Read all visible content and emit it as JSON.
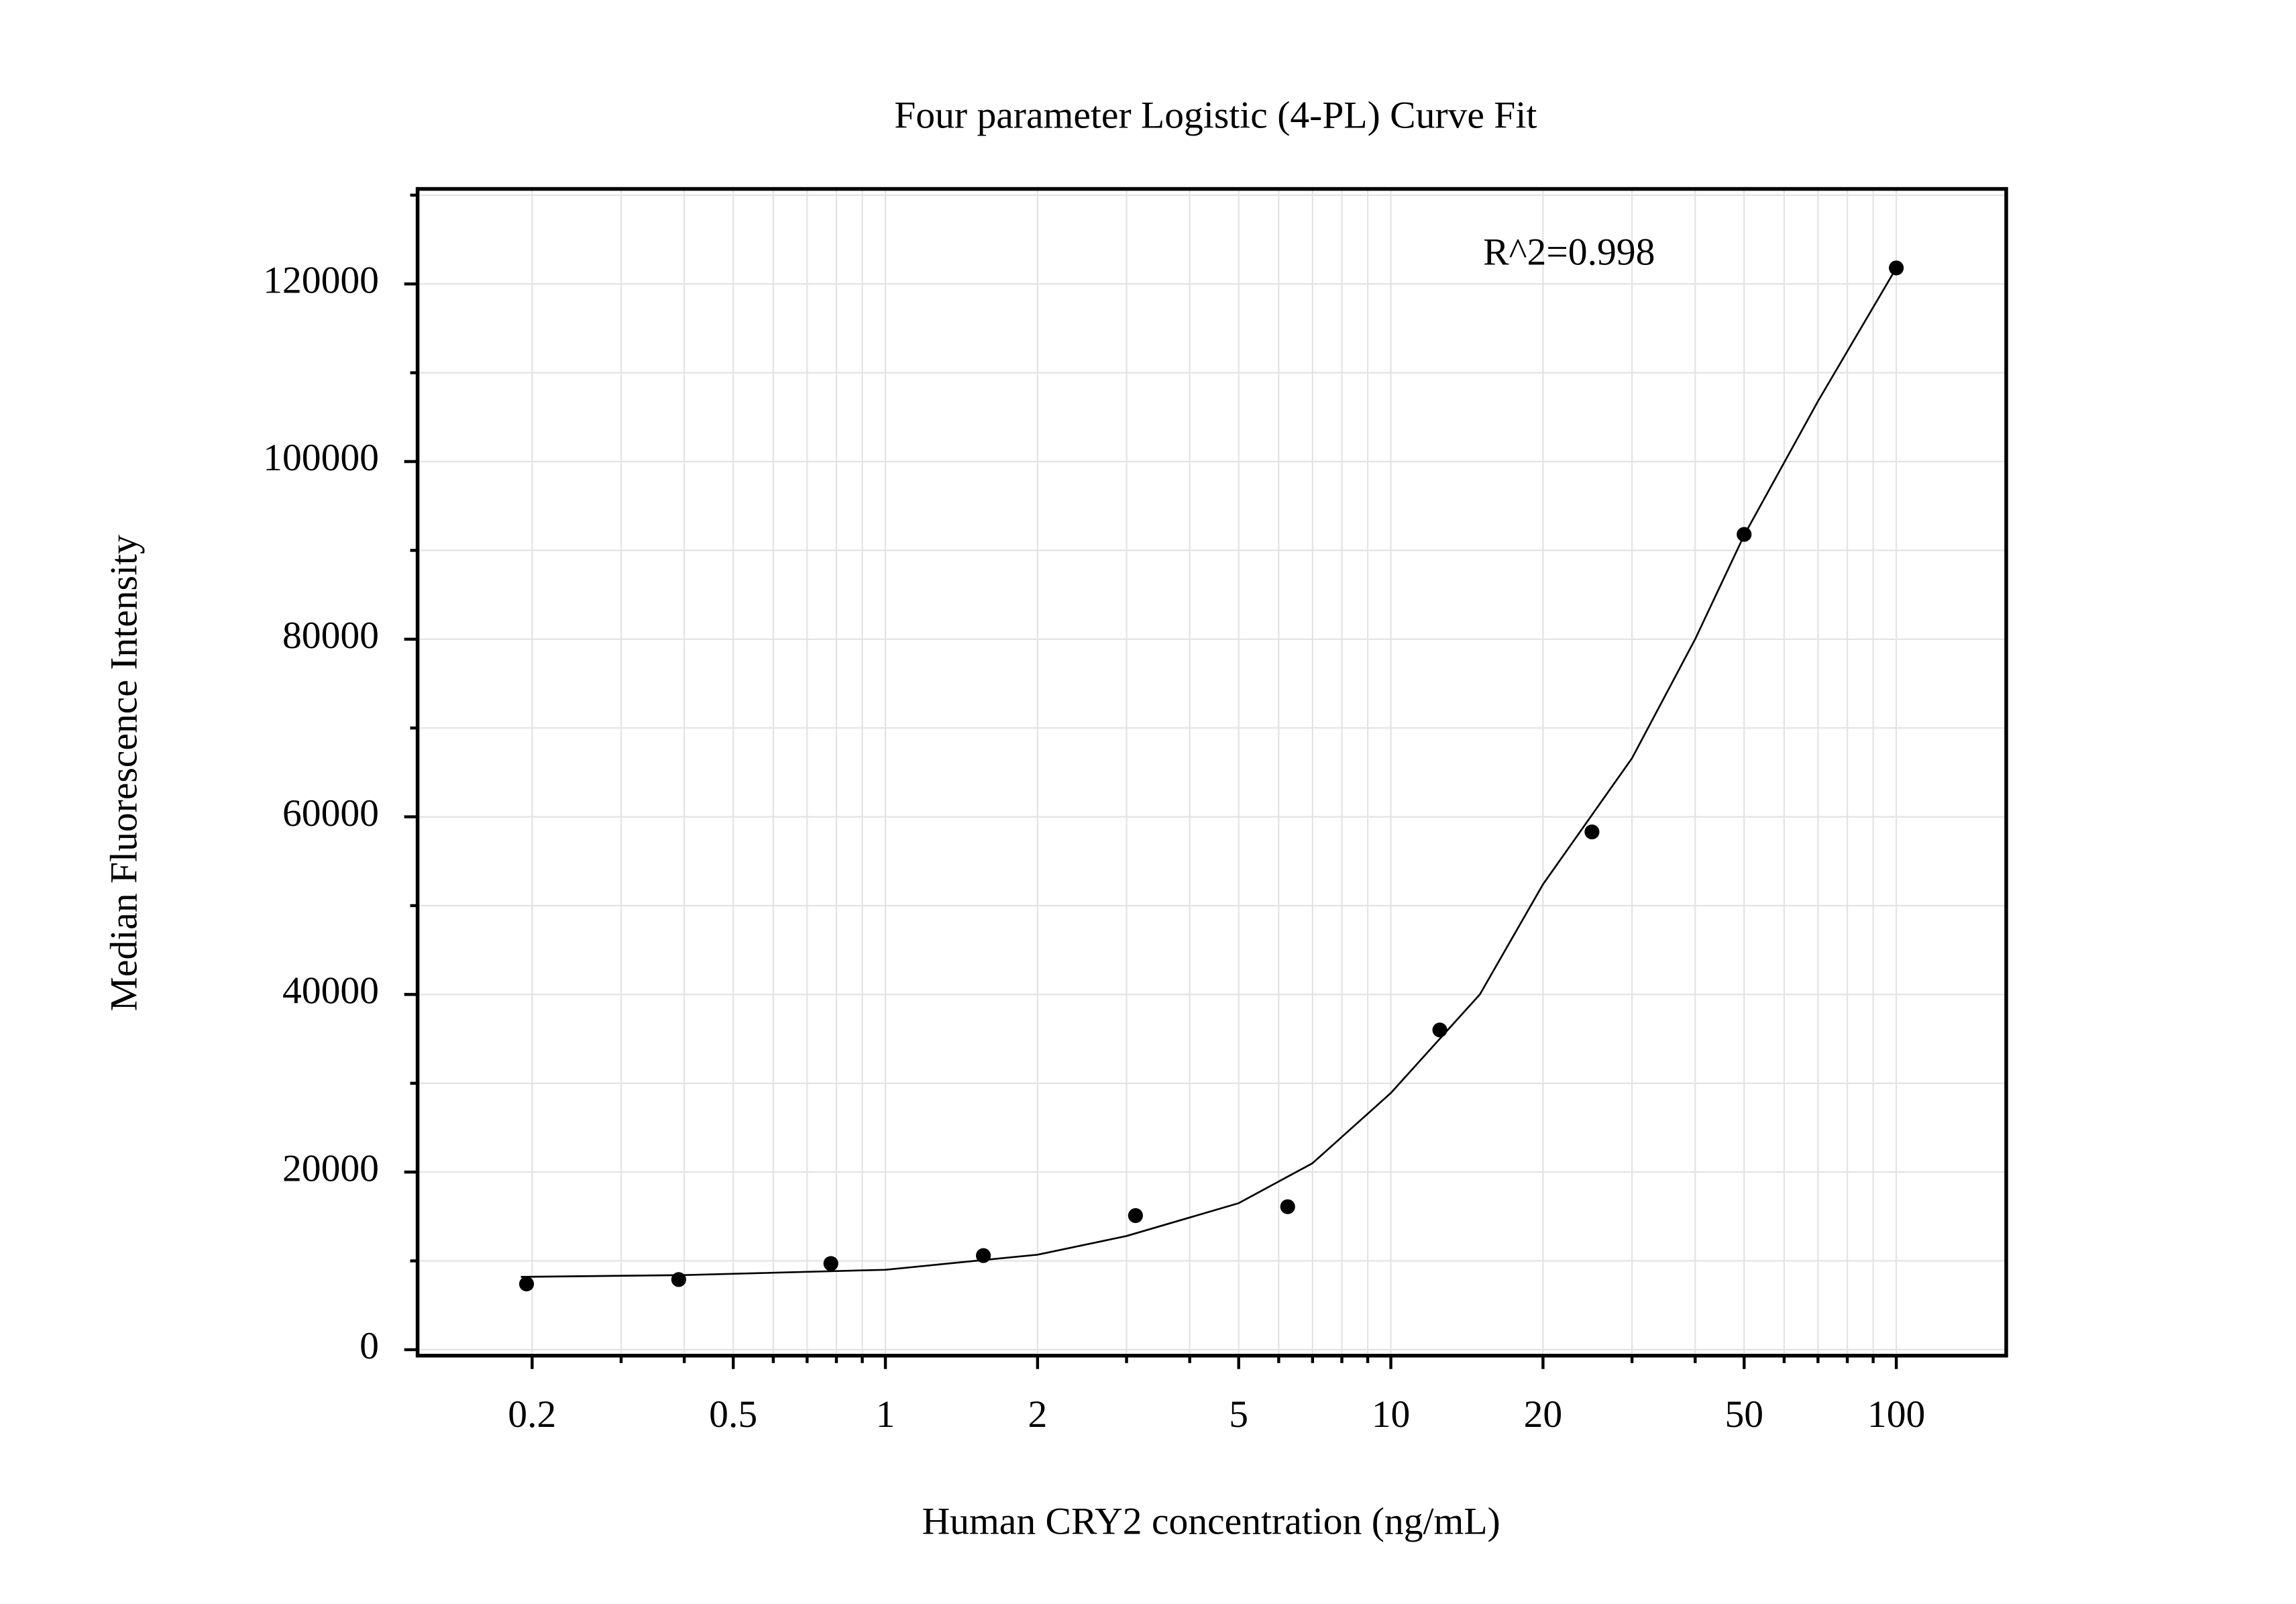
{
  "chart_data": {
    "type": "scatter",
    "title": "Four parameter Logistic (4-PL) Curve Fit",
    "annotation": "R^2=0.998",
    "x_label": "Human CRY2 concentration (ng/mL)",
    "y_label": "Median Fluorescence Intensity",
    "xscale": "log",
    "grid": true,
    "xlim": [
      0.1187,
      165
    ],
    "ylim": [
      -670,
      130700
    ],
    "xticks": [
      0.2,
      0.5,
      1,
      2,
      5,
      10,
      20,
      50,
      100
    ],
    "xminorticks": [
      0.3,
      0.4,
      0.6,
      0.7,
      0.8,
      0.9,
      3,
      4,
      6,
      7,
      8,
      9,
      30,
      40,
      60,
      70,
      80,
      90
    ],
    "yticks": [
      0,
      20000,
      40000,
      60000,
      80000,
      100000,
      120000
    ],
    "yminorticks": [
      10000,
      30000,
      50000,
      70000,
      90000,
      110000,
      130000
    ],
    "series": [
      {
        "type": "scatter",
        "color": "#000000",
        "x": [
          0.195,
          0.39,
          0.78,
          1.5625,
          3.125,
          6.25,
          12.5,
          25,
          50,
          100
        ],
        "values": [
          7400,
          7900,
          9700,
          10600,
          15100,
          16100,
          36000,
          58300,
          91800,
          121800
        ]
      },
      {
        "type": "line",
        "color": "#000000",
        "x": [
          0.19,
          0.4,
          1,
          2,
          3,
          5,
          7,
          10,
          15,
          20,
          30,
          40,
          50,
          70,
          100
        ],
        "values": [
          8200,
          8400,
          9000,
          10700,
          12800,
          16500,
          21000,
          28900,
          40000,
          52400,
          66600,
          80000,
          91700,
          106800,
          121800
        ]
      }
    ]
  }
}
